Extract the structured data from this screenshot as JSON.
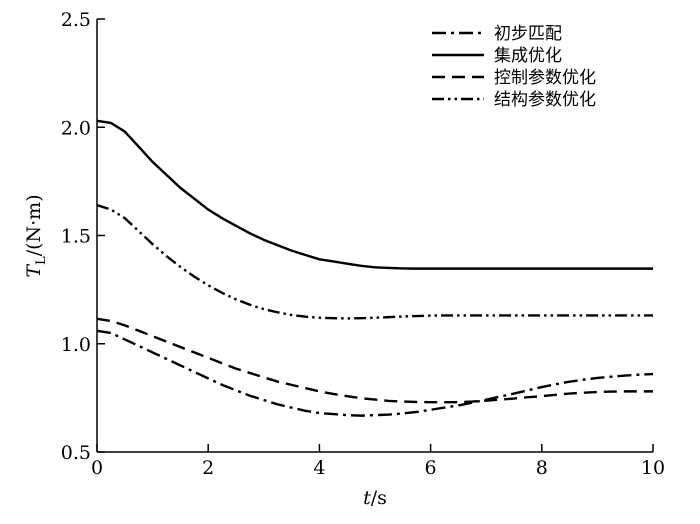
{
  "chart_data": {
    "type": "line",
    "title": "",
    "xlabel": "t/s",
    "ylabel": "T_L/(N·m)",
    "xlim": [
      0,
      10
    ],
    "ylim": [
      0.5,
      2.5
    ],
    "xticks": [
      0,
      2,
      4,
      6,
      8,
      10
    ],
    "yticks": [
      0.5,
      1.0,
      1.5,
      2.0,
      2.5
    ],
    "xtick_labels": [
      "0",
      "2",
      "4",
      "6",
      "8",
      "10"
    ],
    "ytick_labels": [
      "0.5",
      "1.0",
      "1.5",
      "2.0",
      "2.5"
    ],
    "grid": false,
    "legend_position": "top-right",
    "x": [
      0,
      0.25,
      0.5,
      0.75,
      1,
      1.25,
      1.5,
      1.75,
      2,
      2.25,
      2.5,
      2.75,
      3,
      3.25,
      3.5,
      3.75,
      4,
      4.25,
      4.5,
      4.75,
      5,
      5.25,
      5.5,
      5.75,
      6,
      6.25,
      6.5,
      6.75,
      7,
      7.25,
      7.5,
      7.75,
      8,
      8.25,
      8.5,
      8.75,
      9,
      9.25,
      9.5,
      9.75,
      10
    ],
    "series": [
      {
        "name": "初步匹配",
        "dash": "14 5 3 5",
        "values": [
          1.06,
          1.05,
          1.02,
          0.99,
          0.96,
          0.93,
          0.9,
          0.87,
          0.84,
          0.81,
          0.785,
          0.76,
          0.74,
          0.72,
          0.705,
          0.69,
          0.68,
          0.675,
          0.67,
          0.668,
          0.67,
          0.673,
          0.678,
          0.685,
          0.695,
          0.705,
          0.715,
          0.728,
          0.742,
          0.756,
          0.77,
          0.785,
          0.8,
          0.813,
          0.825,
          0.834,
          0.842,
          0.848,
          0.853,
          0.857,
          0.86
        ]
      },
      {
        "name": "集成优化",
        "dash": "",
        "values": [
          2.03,
          2.02,
          1.98,
          1.91,
          1.84,
          1.78,
          1.72,
          1.67,
          1.62,
          1.58,
          1.545,
          1.51,
          1.48,
          1.455,
          1.43,
          1.41,
          1.39,
          1.38,
          1.37,
          1.36,
          1.353,
          1.35,
          1.348,
          1.347,
          1.347,
          1.347,
          1.347,
          1.347,
          1.347,
          1.347,
          1.347,
          1.347,
          1.347,
          1.347,
          1.347,
          1.347,
          1.347,
          1.347,
          1.347,
          1.347,
          1.347
        ]
      },
      {
        "name": "控制参数优化",
        "dash": "13 7",
        "values": [
          1.115,
          1.105,
          1.085,
          1.06,
          1.035,
          1.01,
          0.985,
          0.96,
          0.935,
          0.91,
          0.885,
          0.865,
          0.845,
          0.825,
          0.81,
          0.795,
          0.78,
          0.768,
          0.758,
          0.748,
          0.742,
          0.736,
          0.733,
          0.731,
          0.73,
          0.73,
          0.73,
          0.733,
          0.737,
          0.742,
          0.747,
          0.753,
          0.758,
          0.764,
          0.77,
          0.774,
          0.777,
          0.779,
          0.78,
          0.78,
          0.78
        ]
      },
      {
        "name": "结构参数优化",
        "dash": "12 4 2.5 4 2.5 4",
        "values": [
          1.64,
          1.62,
          1.58,
          1.52,
          1.46,
          1.405,
          1.355,
          1.31,
          1.27,
          1.235,
          1.205,
          1.18,
          1.16,
          1.145,
          1.133,
          1.125,
          1.12,
          1.118,
          1.117,
          1.118,
          1.12,
          1.123,
          1.126,
          1.128,
          1.13,
          1.131,
          1.131,
          1.131,
          1.131,
          1.131,
          1.131,
          1.131,
          1.131,
          1.131,
          1.131,
          1.131,
          1.131,
          1.131,
          1.131,
          1.131,
          1.131
        ]
      }
    ]
  }
}
